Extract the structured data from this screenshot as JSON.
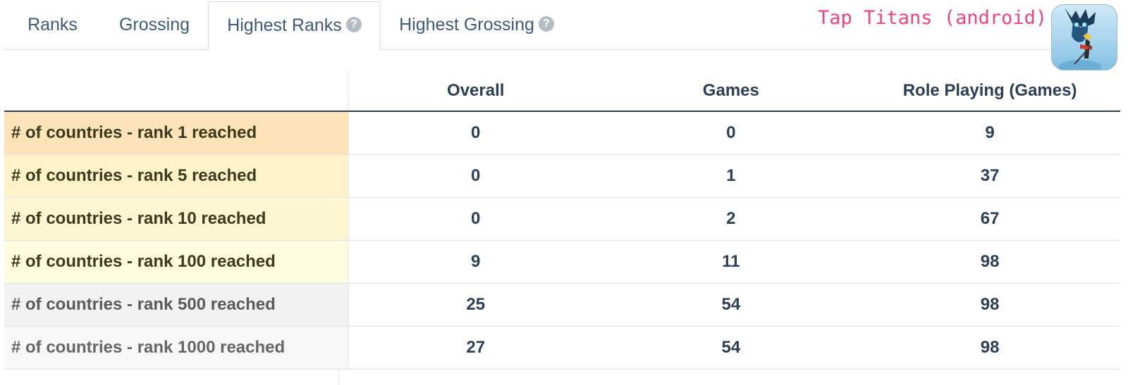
{
  "tabs": [
    {
      "label": "Ranks",
      "help": false,
      "active": false
    },
    {
      "label": "Grossing",
      "help": false,
      "active": false
    },
    {
      "label": "Highest Ranks",
      "help": true,
      "active": true
    },
    {
      "label": "Highest Grossing",
      "help": true,
      "active": false
    }
  ],
  "help_glyph": "?",
  "app": {
    "title": "Tap Titans (android)",
    "icon": "tap-titans-app-icon"
  },
  "table": {
    "columns": [
      "",
      "Overall",
      "Games",
      "Role Playing (Games)"
    ],
    "rows": [
      {
        "label": "# of countries - rank 1 reached",
        "overall": "0",
        "games": "0",
        "rpg": "9"
      },
      {
        "label": "# of countries - rank 5 reached",
        "overall": "0",
        "games": "1",
        "rpg": "37"
      },
      {
        "label": "# of countries - rank 10 reached",
        "overall": "0",
        "games": "2",
        "rpg": "67"
      },
      {
        "label": "# of countries - rank 100 reached",
        "overall": "9",
        "games": "11",
        "rpg": "98"
      },
      {
        "label": "# of countries - rank 500 reached",
        "overall": "25",
        "games": "54",
        "rpg": "98"
      },
      {
        "label": "# of countries - rank 1000 reached",
        "overall": "27",
        "games": "54",
        "rpg": "98"
      }
    ]
  }
}
